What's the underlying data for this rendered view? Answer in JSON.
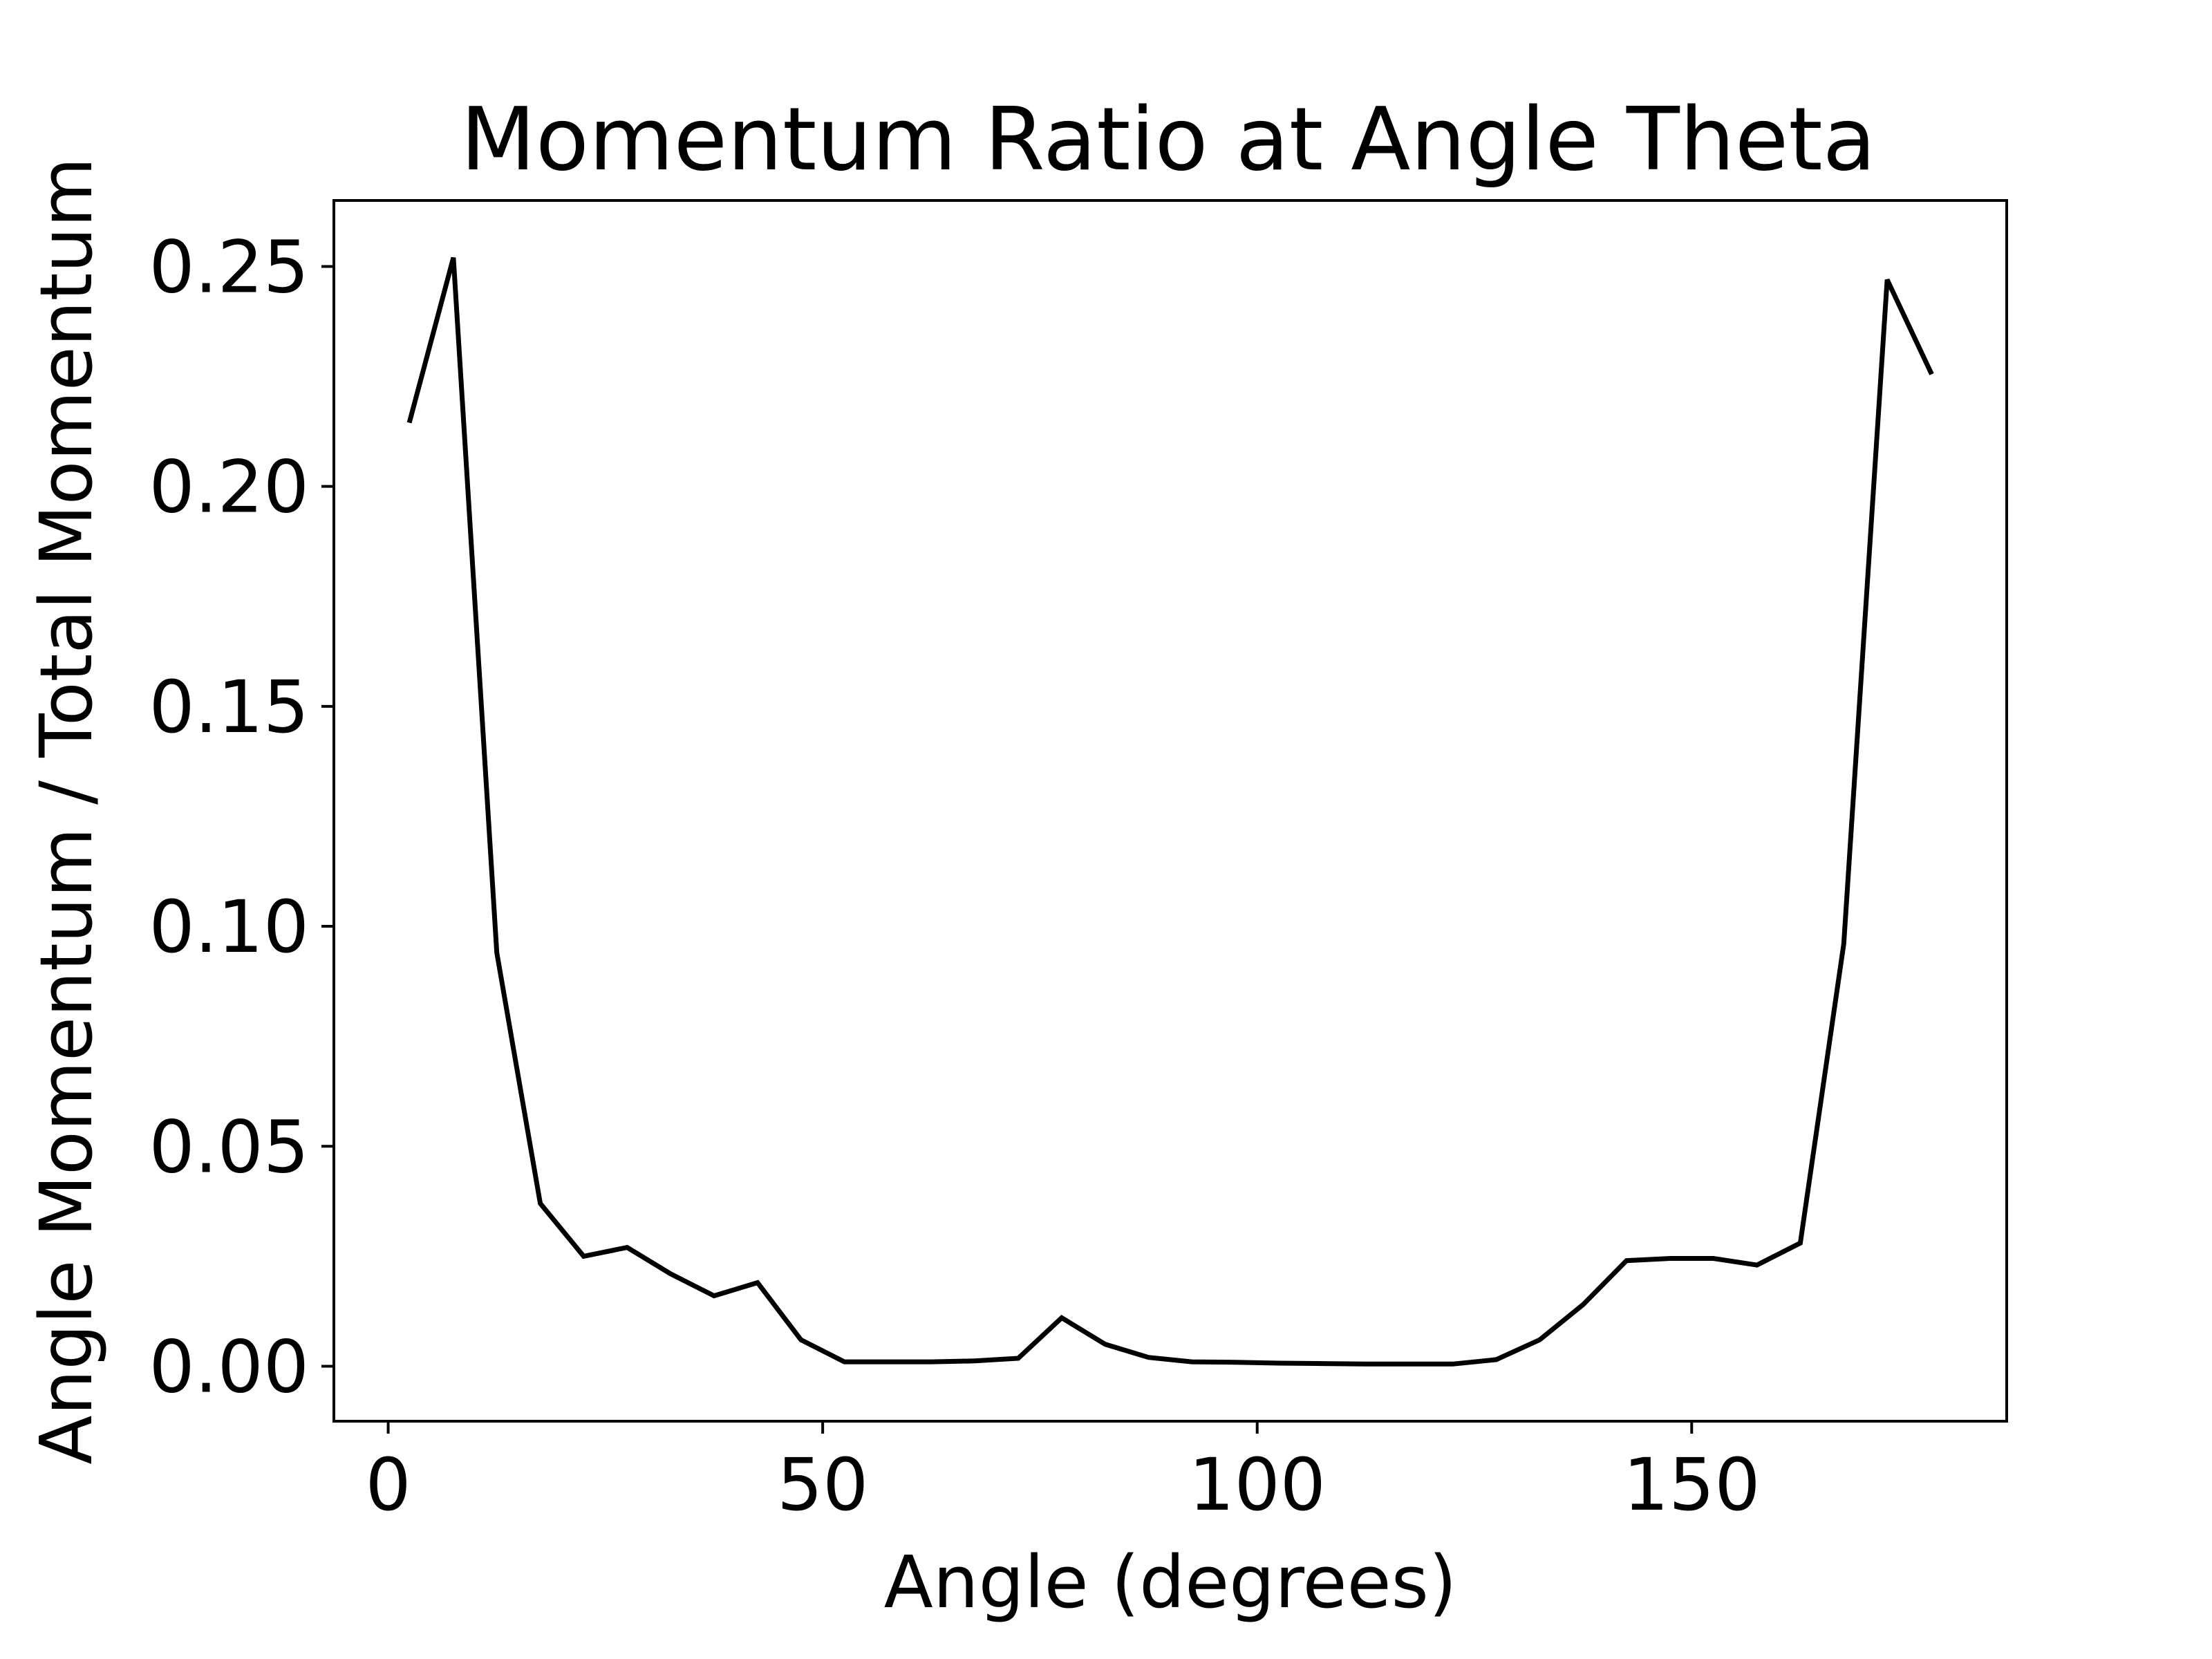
{
  "chart_data": {
    "type": "line",
    "title": "Momentum Ratio at Angle Theta",
    "xlabel": "Angle (degrees)",
    "ylabel": "Angle Momentum / Total Momentum",
    "xlim": [
      -6.25,
      186.25
    ],
    "ylim": [
      -0.0125,
      0.265
    ],
    "xticks": [
      0,
      50,
      100,
      150
    ],
    "xtick_labels": [
      "0",
      "50",
      "100",
      "150"
    ],
    "yticks": [
      0.0,
      0.05,
      0.1,
      0.15,
      0.2,
      0.25
    ],
    "ytick_labels": [
      "0.00",
      "0.05",
      "0.10",
      "0.15",
      "0.20",
      "0.25"
    ],
    "grid": false,
    "legend": "none",
    "line_color": "#000000",
    "series": [
      {
        "x": [
          2.5,
          7.5,
          12.5,
          17.5,
          22.5,
          27.5,
          32.5,
          37.5,
          42.5,
          47.5,
          52.5,
          57.5,
          62.5,
          67.5,
          72.5,
          77.5,
          82.5,
          87.5,
          92.5,
          97.5,
          102.5,
          107.5,
          112.5,
          117.5,
          122.5,
          127.5,
          132.5,
          137.5,
          142.5,
          147.5,
          152.5,
          157.5,
          162.5,
          167.5,
          172.5,
          177.5
        ],
        "values": [
          0.215,
          0.252,
          0.094,
          0.037,
          0.025,
          0.027,
          0.021,
          0.016,
          0.019,
          0.006,
          0.001,
          0.001,
          0.001,
          0.0012,
          0.0018,
          0.011,
          0.005,
          0.002,
          0.001,
          0.0009,
          0.0007,
          0.0006,
          0.0005,
          0.0005,
          0.0005,
          0.0015,
          0.006,
          0.014,
          0.024,
          0.0245,
          0.0245,
          0.023,
          0.028,
          0.096,
          0.247,
          0.226
        ]
      }
    ]
  }
}
